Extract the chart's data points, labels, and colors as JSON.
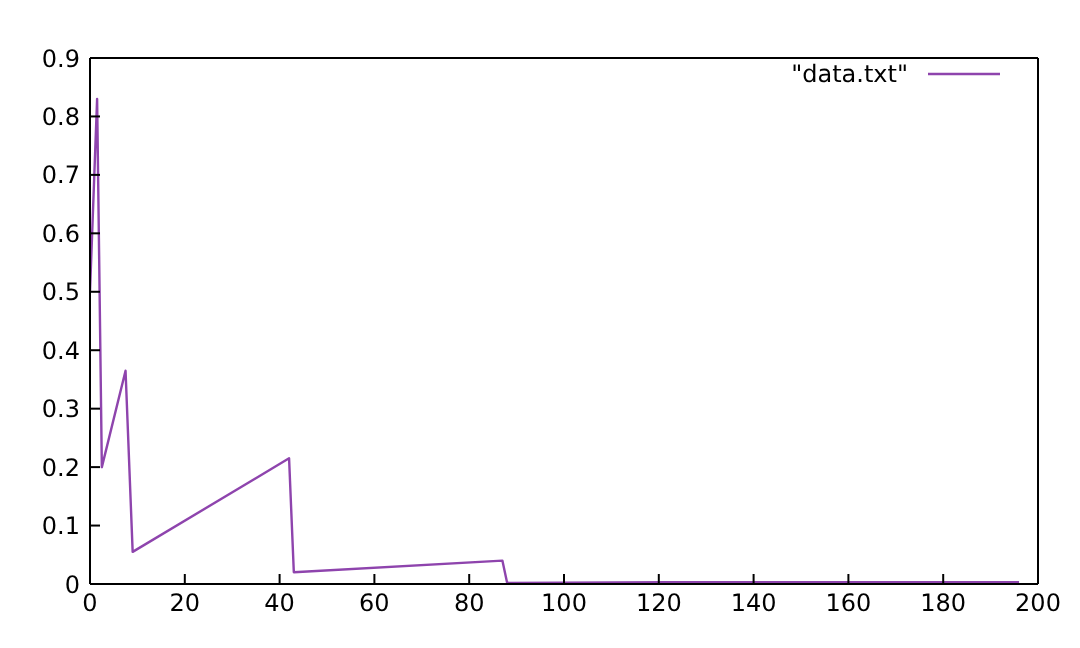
{
  "chart_data": {
    "type": "line",
    "x": [
      0,
      1.5,
      2.5,
      7.5,
      9,
      42,
      43,
      87,
      88,
      122,
      196
    ],
    "series": [
      {
        "name": "\"data.txt\"",
        "color": "#8e44ad",
        "values": [
          0.5,
          0.83,
          0.2,
          0.365,
          0.055,
          0.215,
          0.02,
          0.04,
          0.002,
          0.003,
          0.003
        ]
      }
    ],
    "xlim": [
      0,
      200
    ],
    "xticks": [
      0,
      20,
      40,
      60,
      80,
      100,
      120,
      140,
      160,
      180,
      200
    ],
    "ylim": [
      0,
      0.9
    ],
    "yticks": [
      0,
      0.1,
      0.2,
      0.3,
      0.4,
      0.5,
      0.6,
      0.7,
      0.8,
      0.9
    ],
    "grid": false,
    "legend": "top right",
    "marker": "none",
    "line_style": "solid"
  }
}
